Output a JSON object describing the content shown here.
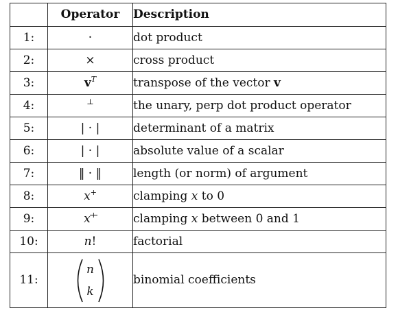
{
  "table": {
    "headers": [
      "",
      "Operator",
      "Description"
    ],
    "rows": [
      {
        "num": "1:",
        "op": {
          "base": "·",
          "sup": ""
        },
        "desc": "dot product"
      },
      {
        "num": "2:",
        "op": {
          "base": "×",
          "sup": ""
        },
        "desc": "cross product"
      },
      {
        "num": "3:",
        "op": {
          "base": "v",
          "sup": "T"
        },
        "desc": "transpose of the vector ",
        "desc_bold": "v"
      },
      {
        "num": "4:",
        "op": {
          "base": "",
          "sup": "⊥"
        },
        "desc": "the unary, perp dot product operator"
      },
      {
        "num": "5:",
        "op": {
          "base": "| · |",
          "sup": ""
        },
        "desc": "determinant of a matrix"
      },
      {
        "num": "6:",
        "op": {
          "base": "| · |",
          "sup": ""
        },
        "desc": "absolute value of a scalar"
      },
      {
        "num": "7:",
        "op": {
          "base": "‖ · ‖",
          "sup": ""
        },
        "desc": "length (or norm) of argument"
      },
      {
        "num": "8:",
        "op": {
          "base": "x",
          "sup": "+"
        },
        "desc_parts": [
          "clamping ",
          "x",
          " to 0"
        ]
      },
      {
        "num": "9:",
        "op": {
          "base": "x",
          "sup": "+"
        },
        "desc_parts": [
          "clamping ",
          "x",
          " between 0 and 1"
        ]
      },
      {
        "num": "10:",
        "op": {
          "base": "n",
          "sup": "!"
        },
        "desc": "factorial"
      },
      {
        "num": "11:",
        "op": {
          "top": "n",
          "bottom": "k"
        },
        "desc": "binomial coefficients"
      }
    ]
  }
}
